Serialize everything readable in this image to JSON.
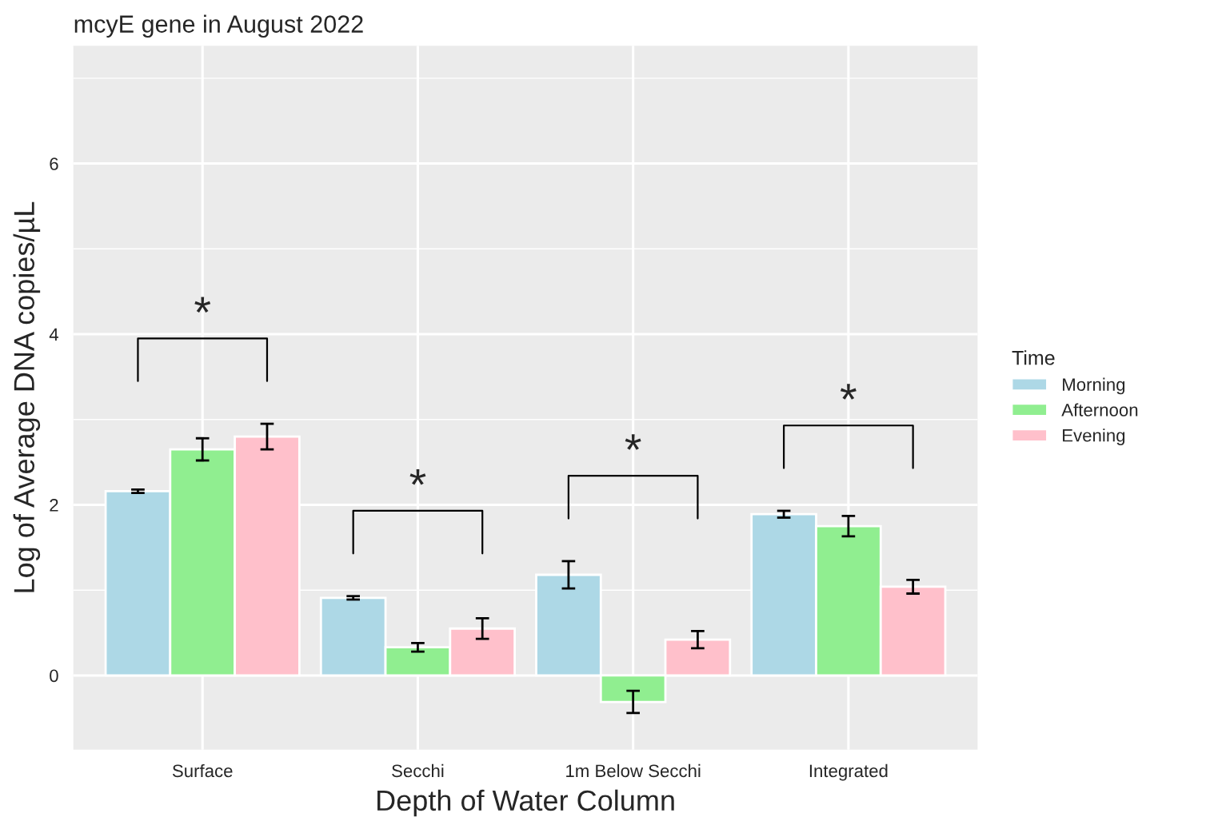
{
  "chart_data": {
    "type": "bar",
    "title": "mcyE gene in August 2022",
    "xlabel": "Depth of Water Column",
    "ylabel": "Log of Average DNA copies/µL",
    "legend_title": "Time",
    "categories": [
      "Surface",
      "Secchi",
      "1m Below Secchi",
      "Integrated"
    ],
    "series": [
      {
        "name": "Morning",
        "color": "#add8e6",
        "values": [
          2.16,
          0.91,
          1.18,
          1.89
        ],
        "errors": [
          0.02,
          0.02,
          0.16,
          0.04
        ]
      },
      {
        "name": "Afternoon",
        "color": "#90ee90",
        "values": [
          2.65,
          0.33,
          -0.31,
          1.75
        ],
        "errors": [
          0.13,
          0.05,
          0.13,
          0.12
        ]
      },
      {
        "name": "Evening",
        "color": "#ffc0cb",
        "values": [
          2.8,
          0.55,
          0.42,
          1.04
        ],
        "errors": [
          0.15,
          0.12,
          0.1,
          0.08
        ]
      }
    ],
    "ylim": [
      -0.87,
      7.38
    ],
    "yticks": [
      0,
      2,
      4,
      6
    ],
    "grid": true,
    "legend": "right",
    "annotations": [
      "*",
      "*",
      "*",
      "*"
    ]
  }
}
